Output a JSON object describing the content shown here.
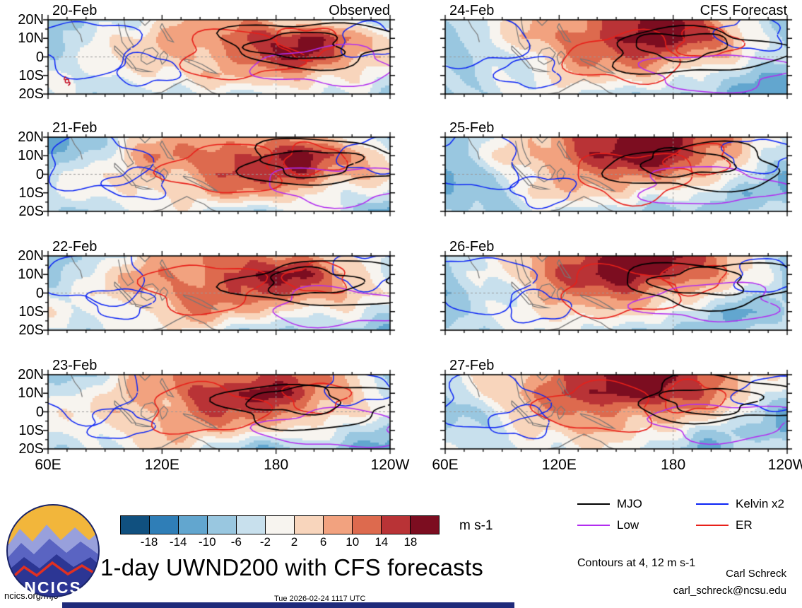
{
  "figure": {
    "title": "1-day UWND200 with CFS forecasts",
    "contours_note": "Contours at 4, 12 m s-1"
  },
  "colorbar": {
    "tick_labels": [
      "-18",
      "-14",
      "-10",
      "-6",
      "-2",
      "2",
      "6",
      "10",
      "14",
      "18"
    ],
    "units": "m s-1",
    "colors": [
      "#10507f",
      "#2f7eb7",
      "#62a6cf",
      "#99c7e0",
      "#c8e0ed",
      "#f7f4ef",
      "#f8d5bc",
      "#f2a27f",
      "#dd6a4e",
      "#b93336",
      "#7c0d20"
    ]
  },
  "legend": {
    "items": [
      {
        "label": "MJO",
        "color": "#000000"
      },
      {
        "label": "Kelvin x2",
        "color": "#0b24f5"
      },
      {
        "label": "Low",
        "color": "#b22cf0"
      },
      {
        "label": "ER",
        "color": "#e8201a"
      }
    ]
  },
  "footer": {
    "site": "ncics.org/mjo",
    "timestamp": "Tue 2026-02-24 1117 UTC",
    "credit_name": "Carl Schreck",
    "credit_email": "carl_schreck@ncsu.edu"
  },
  "logo": {
    "text": "NCICS"
  },
  "chart_data": {
    "type": "heatmap",
    "variable": "UWND200 zonal wind anomaly shading with wave-filtered contours",
    "units": "m s-1",
    "lon_range_deg_east": [
      60,
      240
    ],
    "lat_range_deg": [
      -20,
      20
    ],
    "lat_tick_labels": [
      "20N",
      "10N",
      "0",
      "10S",
      "20S"
    ],
    "lon_tick_labels": [
      "60E",
      "120E",
      "180",
      "120W"
    ],
    "shading_levels": [
      -18,
      -14,
      -10,
      -6,
      -2,
      2,
      6,
      10,
      14,
      18
    ],
    "contour_levels": [
      4,
      12
    ],
    "wave_contours": [
      {
        "name": "MJO",
        "color": "#000000"
      },
      {
        "name": "Kelvin x2",
        "color": "#0b24f5"
      },
      {
        "name": "Low",
        "color": "#b22cf0"
      },
      {
        "name": "ER",
        "color": "#e8201a"
      }
    ],
    "cyclone_marker": {
      "panel": "20-Feb",
      "lon_deg_east": 70,
      "lat_deg": -13
    },
    "grid_lon_samples": [
      60,
      82.5,
      105,
      127.5,
      150,
      172.5,
      195,
      217.5,
      240
    ],
    "grid_lat_samples": [
      20,
      10,
      0,
      -10,
      -20
    ],
    "columns": [
      {
        "label": "Observed",
        "panels": [
          {
            "date": "20-Feb",
            "grid": [
              [
                -10,
                -6,
                0,
                4,
                6,
                8,
                4,
                -2,
                -8
              ],
              [
                -8,
                -2,
                4,
                8,
                10,
                16,
                20,
                12,
                2
              ],
              [
                -4,
                0,
                2,
                6,
                10,
                14,
                18,
                10,
                6
              ],
              [
                -2,
                -2,
                0,
                2,
                6,
                8,
                6,
                2,
                -2
              ],
              [
                -6,
                -4,
                -2,
                -2,
                -6,
                -2,
                2,
                -4,
                -10
              ]
            ]
          },
          {
            "date": "21-Feb",
            "grid": [
              [
                -12,
                -8,
                2,
                6,
                8,
                10,
                6,
                0,
                -6
              ],
              [
                -10,
                -4,
                6,
                10,
                12,
                18,
                20,
                10,
                0
              ],
              [
                -6,
                0,
                4,
                8,
                12,
                16,
                16,
                8,
                4
              ],
              [
                -2,
                -2,
                2,
                4,
                8,
                8,
                4,
                0,
                -4
              ],
              [
                -4,
                -6,
                -2,
                0,
                -4,
                -6,
                0,
                -6,
                -12
              ]
            ]
          },
          {
            "date": "22-Feb",
            "grid": [
              [
                -10,
                -6,
                2,
                8,
                10,
                12,
                8,
                2,
                -4
              ],
              [
                -6,
                -2,
                6,
                10,
                14,
                18,
                18,
                8,
                -2
              ],
              [
                -4,
                2,
                4,
                10,
                14,
                14,
                12,
                6,
                2
              ],
              [
                -2,
                0,
                2,
                6,
                8,
                6,
                2,
                -2,
                -6
              ],
              [
                -4,
                -4,
                0,
                2,
                -2,
                -8,
                -4,
                -8,
                -10
              ]
            ]
          },
          {
            "date": "23-Feb",
            "grid": [
              [
                -8,
                -4,
                4,
                8,
                12,
                16,
                12,
                4,
                -6
              ],
              [
                -6,
                0,
                6,
                12,
                16,
                20,
                16,
                6,
                -4
              ],
              [
                -2,
                2,
                6,
                10,
                14,
                12,
                10,
                4,
                0
              ],
              [
                0,
                0,
                2,
                6,
                8,
                4,
                0,
                -4,
                -8
              ],
              [
                -4,
                -2,
                0,
                2,
                -4,
                -10,
                -6,
                -10,
                -12
              ]
            ]
          }
        ]
      },
      {
        "label": "CFS Forecast",
        "panels": [
          {
            "date": "24-Feb",
            "grid": [
              [
                -6,
                -2,
                4,
                10,
                16,
                20,
                12,
                2,
                -8
              ],
              [
                -8,
                -2,
                6,
                12,
                18,
                22,
                16,
                4,
                -6
              ],
              [
                -10,
                -4,
                2,
                8,
                12,
                14,
                8,
                0,
                -8
              ],
              [
                -6,
                -4,
                0,
                4,
                6,
                4,
                -2,
                -8,
                -12
              ],
              [
                -4,
                -6,
                -2,
                0,
                -4,
                -8,
                -6,
                -12,
                -8
              ]
            ]
          },
          {
            "date": "25-Feb",
            "grid": [
              [
                -8,
                -4,
                6,
                12,
                18,
                22,
                16,
                6,
                -4
              ],
              [
                -10,
                -2,
                8,
                14,
                20,
                22,
                14,
                4,
                -8
              ],
              [
                -12,
                -6,
                2,
                8,
                12,
                12,
                6,
                -2,
                -10
              ],
              [
                -8,
                -6,
                0,
                4,
                6,
                2,
                -4,
                -10,
                -8
              ],
              [
                -6,
                -8,
                -4,
                -2,
                -6,
                -8,
                -8,
                -6,
                -4
              ]
            ]
          },
          {
            "date": "26-Feb",
            "grid": [
              [
                -6,
                -2,
                6,
                14,
                20,
                22,
                14,
                4,
                -6
              ],
              [
                -8,
                0,
                8,
                16,
                20,
                20,
                12,
                2,
                -8
              ],
              [
                -10,
                -4,
                4,
                10,
                12,
                10,
                4,
                -4,
                -10
              ],
              [
                -8,
                -4,
                0,
                6,
                6,
                0,
                -6,
                -10,
                -6
              ],
              [
                -4,
                -6,
                -2,
                0,
                -4,
                -8,
                -10,
                -4,
                -2
              ]
            ]
          },
          {
            "date": "27-Feb",
            "grid": [
              [
                -4,
                0,
                8,
                16,
                20,
                22,
                16,
                6,
                -4
              ],
              [
                -6,
                2,
                10,
                16,
                20,
                20,
                14,
                4,
                -6
              ],
              [
                -8,
                -2,
                4,
                10,
                12,
                10,
                6,
                -2,
                -8
              ],
              [
                -6,
                -4,
                2,
                6,
                6,
                2,
                -4,
                -8,
                -10
              ],
              [
                -4,
                -4,
                0,
                2,
                -2,
                -6,
                -8,
                -6,
                -4
              ]
            ]
          }
        ]
      }
    ]
  }
}
